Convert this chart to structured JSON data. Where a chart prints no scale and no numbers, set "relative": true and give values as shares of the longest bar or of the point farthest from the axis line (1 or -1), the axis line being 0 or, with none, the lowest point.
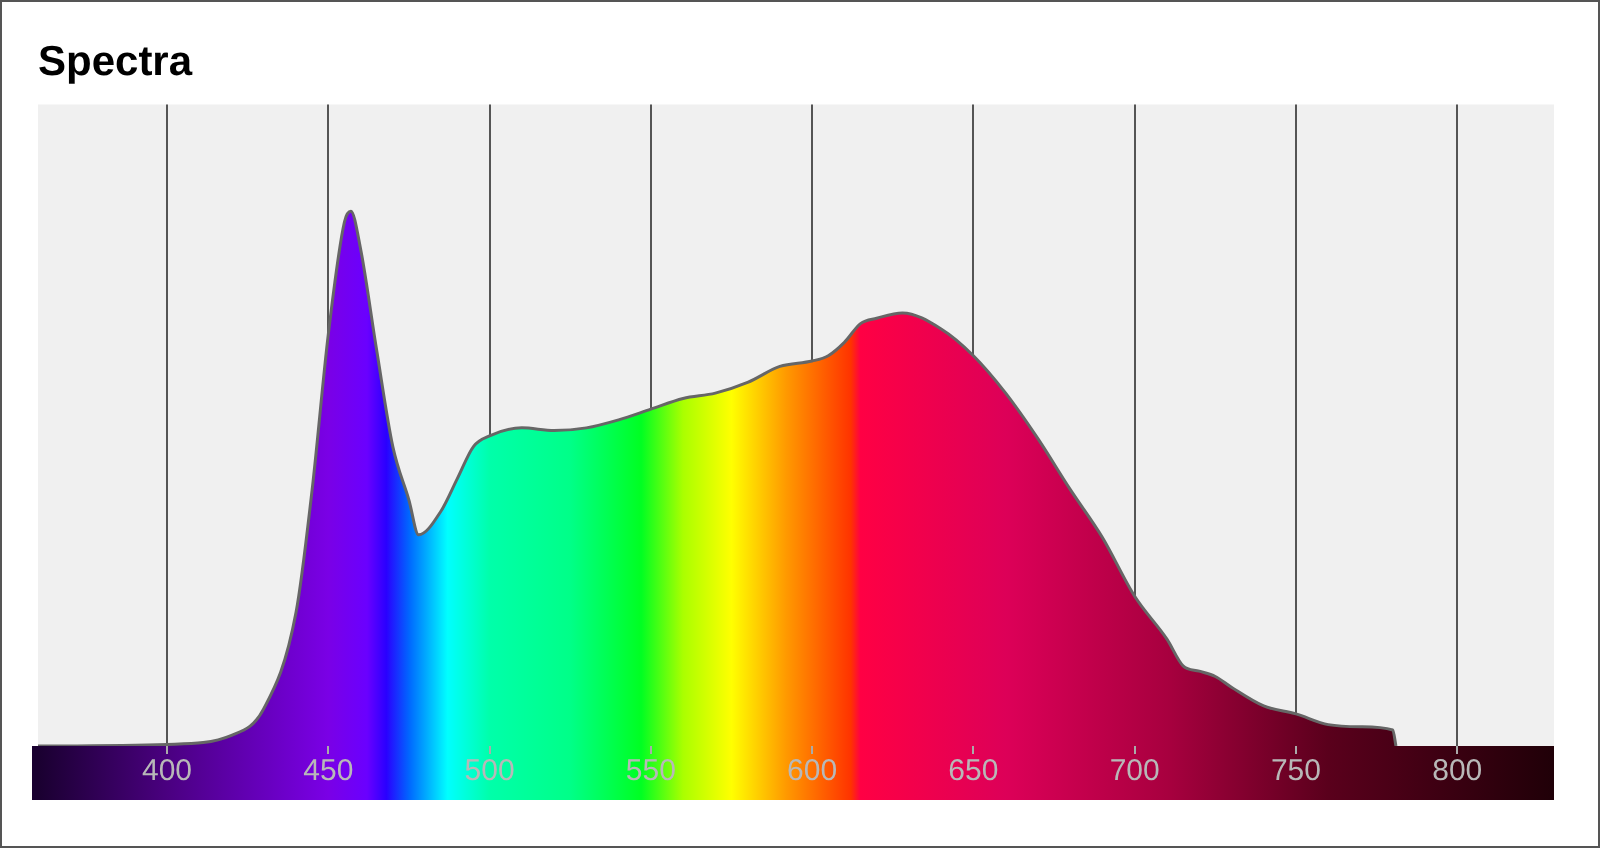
{
  "chart_data": {
    "type": "area",
    "title": "Spectra",
    "relative": true,
    "x": [
      360,
      400,
      420,
      430,
      440,
      445,
      450,
      455,
      457,
      460,
      465,
      470,
      475,
      478,
      485,
      490,
      495,
      500,
      510,
      520,
      530,
      540,
      550,
      560,
      570,
      580,
      590,
      600,
      605,
      610,
      615,
      620,
      628,
      640,
      650,
      660,
      670,
      680,
      690,
      700,
      710,
      715,
      720,
      725,
      730,
      740,
      750,
      760,
      770,
      780,
      781
    ],
    "series": [
      {
        "color": "#666666",
        "values": [
          0,
          0.003,
          0.02,
          0.07,
          0.25,
          0.48,
          0.77,
          0.98,
          1,
          0.93,
          0.74,
          0.56,
          0.46,
          0.395,
          0.44,
          0.5,
          0.56,
          0.58,
          0.595,
          0.59,
          0.595,
          0.61,
          0.63,
          0.65,
          0.66,
          0.68,
          0.71,
          0.72,
          0.73,
          0.755,
          0.79,
          0.8,
          0.81,
          0.78,
          0.73,
          0.66,
          0.575,
          0.48,
          0.39,
          0.28,
          0.2,
          0.15,
          0.14,
          0.13,
          0.11,
          0.075,
          0.06,
          0.04,
          0.036,
          0.03,
          0
        ]
      }
    ],
    "xlim": [
      360,
      830
    ],
    "xticks": [
      400,
      450,
      500,
      550,
      600,
      650,
      700,
      750,
      800
    ],
    "grid": "x"
  }
}
